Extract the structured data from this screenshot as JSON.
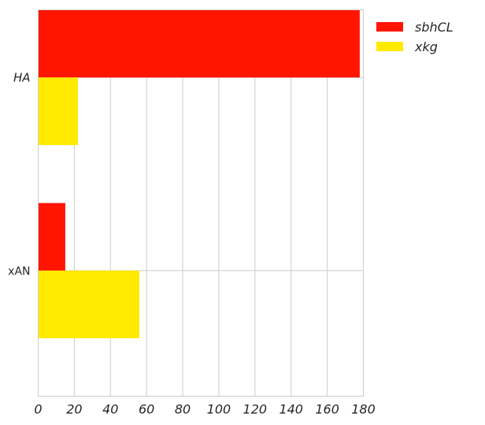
{
  "chart_data": {
    "type": "bar",
    "orientation": "horizontal",
    "categories": [
      "HA",
      "xAN"
    ],
    "category_label_styles": [
      "italic",
      "normal"
    ],
    "series": [
      {
        "name": "sbhCL",
        "values": [
          178,
          15
        ],
        "color": "#ff1500"
      },
      {
        "name": "xkg",
        "values": [
          22,
          56
        ],
        "color": "#ffea00"
      }
    ],
    "xlim": [
      0,
      180
    ],
    "xticks": [
      0,
      20,
      40,
      60,
      80,
      100,
      120,
      140,
      160,
      180
    ],
    "grid": true,
    "legend_position": "top-right",
    "title": "",
    "xlabel": "",
    "ylabel": ""
  }
}
